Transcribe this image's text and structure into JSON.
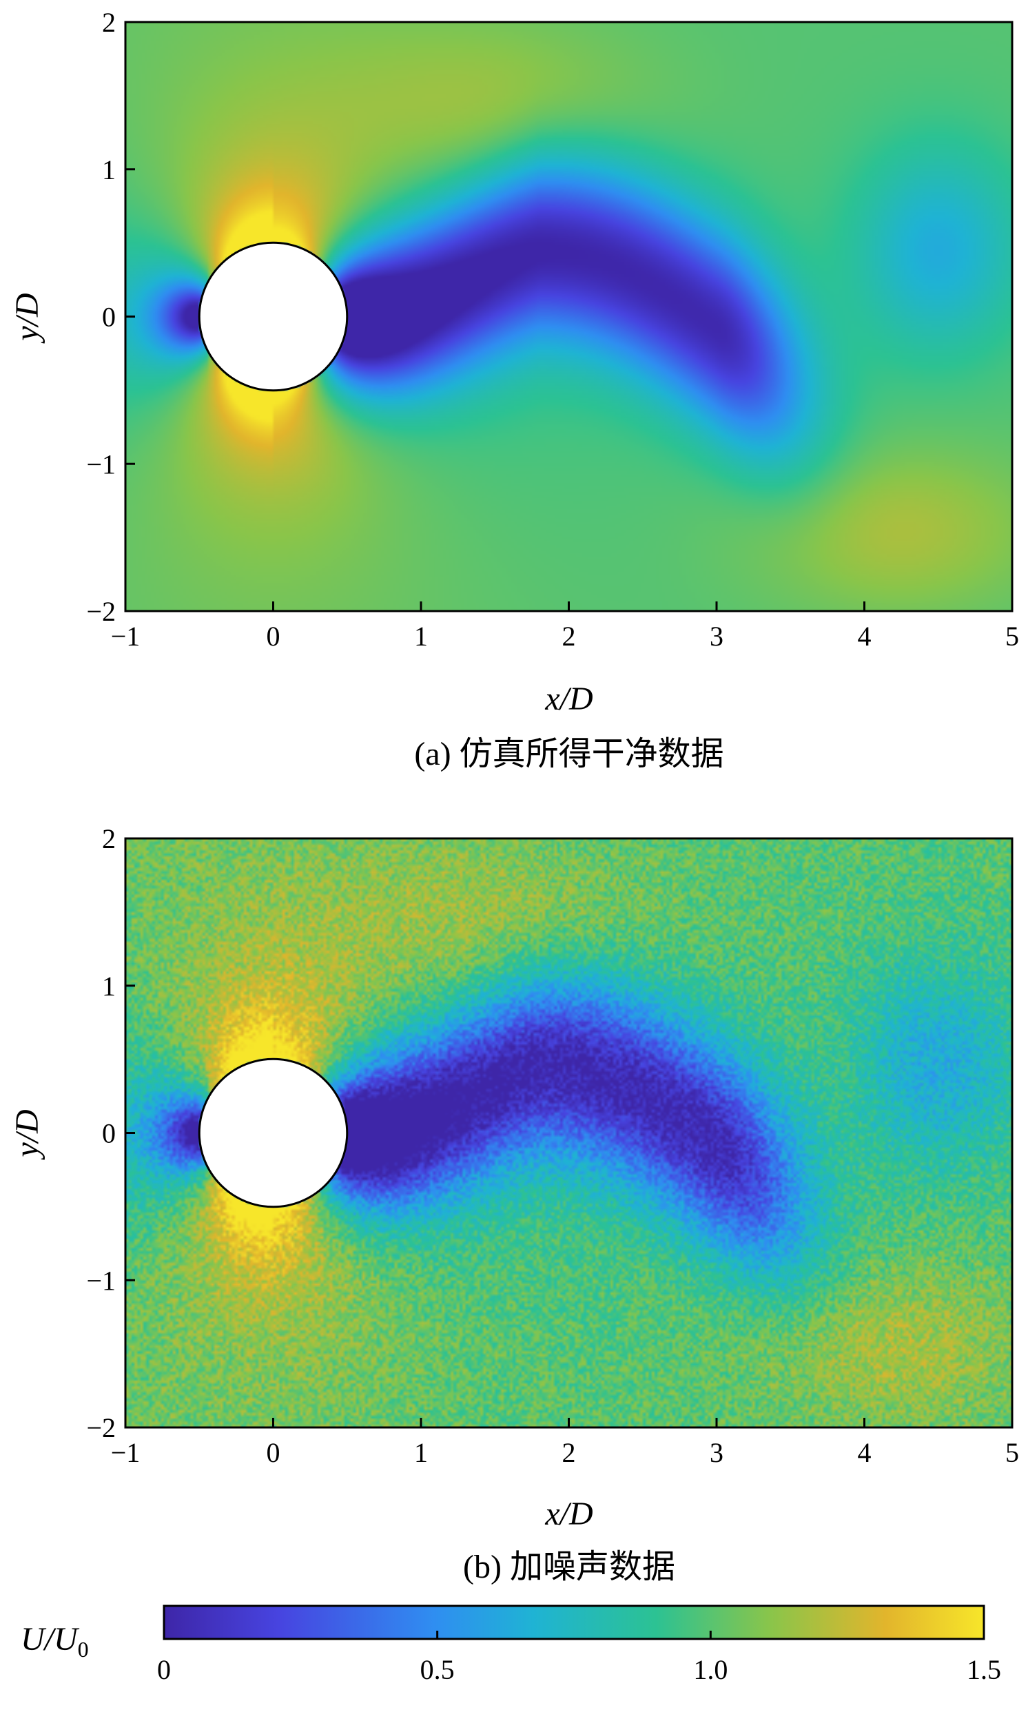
{
  "chart_data": [
    {
      "type": "heatmap",
      "panel": "a",
      "caption": "(a) 仿真所得干净数据",
      "xlabel": "x/D",
      "ylabel": "y/D",
      "xlim": [
        -1,
        5
      ],
      "ylim": [
        -2,
        2
      ],
      "x_ticks": [
        -1,
        0,
        1,
        2,
        3,
        4,
        5
      ],
      "y_ticks": [
        -2,
        -1,
        0,
        1,
        2
      ],
      "noise": false,
      "cylinder": {
        "center": [
          0,
          0
        ],
        "diameter": 1
      }
    },
    {
      "type": "heatmap",
      "panel": "b",
      "caption": "(b) 加噪声数据",
      "xlabel": "x/D",
      "ylabel": "y/D",
      "xlim": [
        -1,
        5
      ],
      "ylim": [
        -2,
        2
      ],
      "x_ticks": [
        -1,
        0,
        1,
        2,
        3,
        4,
        5
      ],
      "y_ticks": [
        -2,
        -1,
        0,
        1,
        2
      ],
      "noise": true,
      "cylinder": {
        "center": [
          0,
          0
        ],
        "diameter": 1
      }
    }
  ],
  "colorbar": {
    "title": "U/U0",
    "range": [
      0,
      1.5
    ],
    "ticks": [
      0,
      0.5,
      1.0,
      1.5
    ],
    "tick_labels": [
      "0",
      "0.5",
      "1.0",
      "1.5"
    ],
    "colormap": [
      "#3e26a8",
      "#4744e0",
      "#2f8ef1",
      "#1fb3d4",
      "#2cc293",
      "#8ac54a",
      "#e2b52c",
      "#f7e62a"
    ]
  }
}
